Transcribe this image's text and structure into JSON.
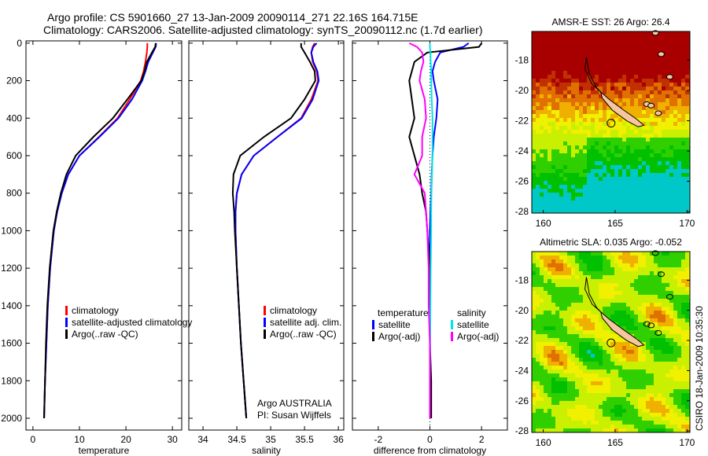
{
  "title": {
    "line1": "Argo profile: CS 5901660_27 13-Jan-2009 20090114_271 22.16S 164.715E",
    "line2": "Climatology: CARS2006. Satellite-adjusted climatology: synTS_20090112.nc (1.7d earlier)"
  },
  "footer": "CSIRO 18-Jan-2009 10:35:30",
  "colors": {
    "climatology": "#ff0000",
    "satellite": "#0000ff",
    "argo": "#000000",
    "sal_satellite": "#00e5e5",
    "sal_argo": "#ff00ff",
    "land": "#f7c6a0"
  },
  "chart_data": [
    {
      "type": "line",
      "xlabel": "temperature",
      "ylabel": "",
      "xlim": [
        -1.5,
        32
      ],
      "ylim": [
        2063,
        -12
      ],
      "xticks": [
        0,
        10,
        20,
        30
      ],
      "yticks": [
        0,
        200,
        400,
        600,
        800,
        1000,
        1200,
        1400,
        1600,
        1800,
        2000
      ],
      "legend": [
        "climatology",
        "satellite-adjusted climatology",
        "Argo(..raw -QC)"
      ],
      "depth": [
        0,
        20,
        50,
        100,
        150,
        200,
        300,
        400,
        500,
        600,
        700,
        800,
        900,
        1000,
        1200,
        1400,
        1600,
        1800,
        2000
      ],
      "series": [
        {
          "name": "climatology",
          "values": [
            24.6,
            24.6,
            24.5,
            24.2,
            23.8,
            23.2,
            20.8,
            18.2,
            14.2,
            10.0,
            7.6,
            6.2,
            5.2,
            4.5,
            3.7,
            3.2,
            2.9,
            2.6,
            2.4
          ]
        },
        {
          "name": "satellite-adjusted climatology",
          "values": [
            26.5,
            26.4,
            25.8,
            24.8,
            24.2,
            23.5,
            21.3,
            18.4,
            14.3,
            10.0,
            7.6,
            6.2,
            5.2,
            4.5,
            3.7,
            3.2,
            2.9,
            2.6,
            2.4
          ]
        },
        {
          "name": "Argo(..raw -QC)",
          "values": [
            26.4,
            26.3,
            25.6,
            24.5,
            24.0,
            23.3,
            20.3,
            17.2,
            13.0,
            9.2,
            7.2,
            6.0,
            5.1,
            4.4,
            3.6,
            3.1,
            2.8,
            2.6,
            2.4
          ]
        }
      ]
    },
    {
      "type": "line",
      "xlabel": "salinity",
      "xlim": [
        33.79,
        36.08
      ],
      "ylim": [
        2063,
        -12
      ],
      "xticks": [
        34,
        34.5,
        35,
        35.5,
        36
      ],
      "legend": [
        "climatology",
        "satellite adj. clim.",
        "Argo(..raw -QC)"
      ],
      "annotation": [
        "Argo AUSTRALIA",
        "PI: Susan Wijffels"
      ],
      "depth": [
        0,
        20,
        50,
        100,
        150,
        200,
        300,
        400,
        500,
        600,
        700,
        800,
        900,
        1000,
        1200,
        1400,
        1600,
        1800,
        2000
      ],
      "series": [
        {
          "name": "climatology",
          "values": [
            35.65,
            35.62,
            35.6,
            35.62,
            35.68,
            35.7,
            35.6,
            35.45,
            35.1,
            34.75,
            34.57,
            34.5,
            34.48,
            34.48,
            34.5,
            34.53,
            34.56,
            34.6,
            34.64
          ]
        },
        {
          "name": "satellite adj. clim.",
          "values": [
            35.68,
            35.63,
            35.6,
            35.63,
            35.69,
            35.71,
            35.62,
            35.46,
            35.1,
            34.75,
            34.57,
            34.5,
            34.48,
            34.48,
            34.5,
            34.53,
            34.56,
            34.6,
            34.64
          ]
        },
        {
          "name": "Argo(..raw -QC)",
          "values": [
            35.45,
            35.45,
            35.5,
            35.58,
            35.65,
            35.66,
            35.5,
            35.3,
            34.9,
            34.55,
            34.45,
            34.44,
            34.46,
            34.47,
            34.5,
            34.53,
            34.56,
            34.6,
            34.64
          ]
        }
      ]
    },
    {
      "type": "line",
      "xlabel": "difference from climatology",
      "xlim": [
        -3,
        3
      ],
      "ylim": [
        2063,
        -12
      ],
      "xticks": [
        -2,
        0,
        2
      ],
      "legend_headers": [
        "temperature",
        "salinity"
      ],
      "legend": [
        "satellite",
        "Argo(-adj)",
        "satellite",
        "Argo(-adj)"
      ],
      "depth": [
        0,
        20,
        50,
        100,
        150,
        200,
        300,
        400,
        500,
        600,
        700,
        800,
        900,
        1000,
        1200,
        1400,
        1600,
        1800,
        2000
      ],
      "series": [
        {
          "name": "temperature satellite",
          "values": [
            1.5,
            1.3,
            0.4,
            0.2,
            0.1,
            0.15,
            0.3,
            0.25,
            0.15,
            0.1,
            0.07,
            0.05,
            0.02,
            0,
            0,
            0,
            0,
            0,
            0
          ]
        },
        {
          "name": "temperature Argo(-adj)",
          "values": [
            2.0,
            1.9,
            -0.1,
            -0.6,
            -0.7,
            -0.8,
            -0.7,
            -0.6,
            -0.8,
            -0.6,
            -0.4,
            -0.3,
            -0.15,
            -0.1,
            0,
            0,
            0,
            0.05,
            0.05
          ]
        },
        {
          "name": "salinity satellite",
          "values": [
            0,
            0,
            0.02,
            0.03,
            0.05,
            0.05,
            0.07,
            0.1,
            0.1,
            0.1,
            0.08,
            0.06,
            0.05,
            0.05,
            0.03,
            0.02,
            0.01,
            0,
            0
          ]
        },
        {
          "name": "salinity Argo(-adj)",
          "values": [
            -0.8,
            -0.5,
            -0.3,
            -0.25,
            -0.35,
            -0.4,
            -0.2,
            -0.15,
            -0.3,
            -0.3,
            -0.6,
            -0.2,
            -0.15,
            -0.1,
            -0.05,
            -0.05,
            0,
            0,
            0
          ]
        }
      ]
    },
    {
      "type": "heatmap",
      "title": "AMSR-E SST: 26 Argo: 26.4",
      "xlim": [
        159.2,
        170.2
      ],
      "ylim": [
        -28.1,
        -16.1
      ],
      "xticks": [
        160,
        165,
        170
      ],
      "yticks": [
        -18,
        -20,
        -22,
        -24,
        -26,
        -28
      ],
      "marker": [
        164.715,
        -22.16
      ]
    },
    {
      "type": "heatmap",
      "title": "Altimetric SLA: 0.035 Argo: -0.052",
      "xlim": [
        159.2,
        170.2
      ],
      "ylim": [
        -28.1,
        -16.1
      ],
      "xticks": [
        160,
        165,
        170
      ],
      "yticks": [
        -18,
        -20,
        -22,
        -24,
        -26,
        -28
      ],
      "marker": [
        164.715,
        -22.16
      ]
    }
  ]
}
